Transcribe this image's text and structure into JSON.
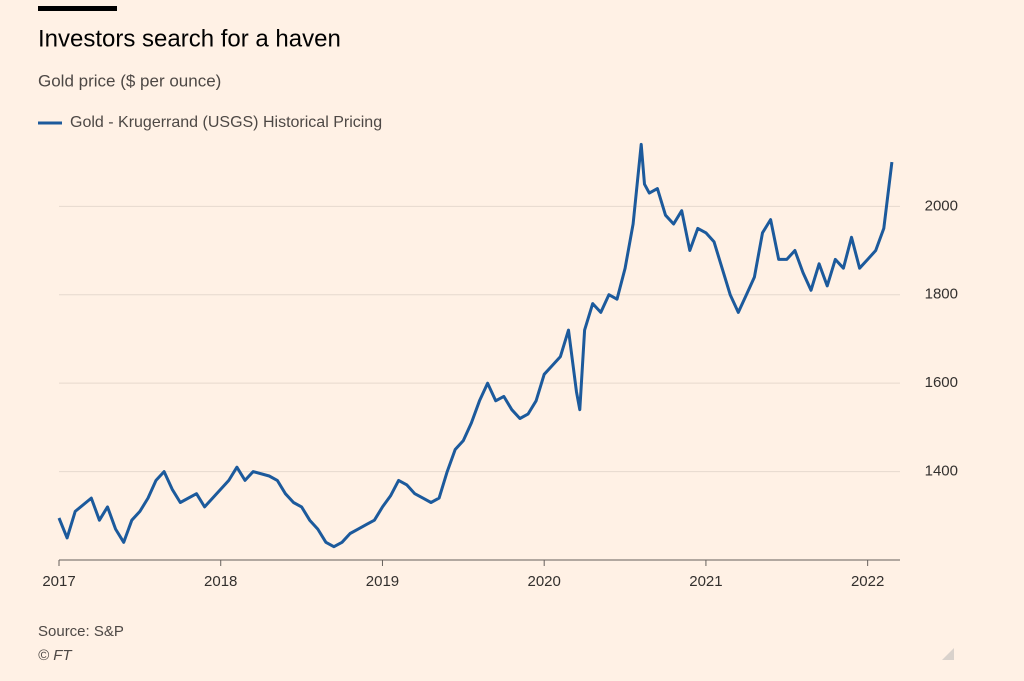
{
  "chart_data": {
    "type": "line",
    "title": "Investors search for a haven",
    "subtitle": "Gold price ($ per ounce)",
    "source": "Source: S&P",
    "credit": "© FT",
    "x": [
      2017.0,
      2017.05,
      2017.1,
      2017.2,
      2017.25,
      2017.3,
      2017.35,
      2017.4,
      2017.45,
      2017.5,
      2017.55,
      2017.6,
      2017.65,
      2017.7,
      2017.75,
      2017.85,
      2017.9,
      2017.95,
      2018.05,
      2018.1,
      2018.15,
      2018.2,
      2018.3,
      2018.35,
      2018.4,
      2018.45,
      2018.5,
      2018.55,
      2018.6,
      2018.65,
      2018.7,
      2018.75,
      2018.8,
      2018.85,
      2018.9,
      2018.95,
      2019.0,
      2019.05,
      2019.1,
      2019.15,
      2019.2,
      2019.25,
      2019.3,
      2019.35,
      2019.4,
      2019.45,
      2019.5,
      2019.55,
      2019.6,
      2019.65,
      2019.7,
      2019.75,
      2019.8,
      2019.85,
      2019.9,
      2019.95,
      2020.0,
      2020.05,
      2020.1,
      2020.15,
      2020.2,
      2020.22,
      2020.25,
      2020.3,
      2020.35,
      2020.4,
      2020.45,
      2020.5,
      2020.55,
      2020.6,
      2020.62,
      2020.65,
      2020.7,
      2020.75,
      2020.8,
      2020.85,
      2020.9,
      2020.95,
      2021.0,
      2021.05,
      2021.1,
      2021.15,
      2021.2,
      2021.25,
      2021.3,
      2021.35,
      2021.4,
      2021.45,
      2021.5,
      2021.55,
      2021.6,
      2021.65,
      2021.7,
      2021.75,
      2021.8,
      2021.85,
      2021.9,
      2021.95,
      2022.0,
      2022.05,
      2022.1,
      2022.15
    ],
    "series": [
      {
        "name": "Gold - Krugerrand (USGS) Historical Pricing",
        "color": "#1c5a9c",
        "values": [
          1295,
          1250,
          1310,
          1340,
          1290,
          1320,
          1270,
          1240,
          1290,
          1310,
          1340,
          1380,
          1400,
          1360,
          1330,
          1350,
          1320,
          1340,
          1380,
          1410,
          1380,
          1400,
          1390,
          1380,
          1350,
          1330,
          1320,
          1290,
          1270,
          1240,
          1230,
          1240,
          1260,
          1270,
          1280,
          1290,
          1320,
          1345,
          1380,
          1370,
          1350,
          1340,
          1330,
          1340,
          1400,
          1450,
          1470,
          1510,
          1560,
          1600,
          1560,
          1570,
          1540,
          1520,
          1530,
          1560,
          1620,
          1640,
          1660,
          1720,
          1580,
          1540,
          1720,
          1780,
          1760,
          1800,
          1790,
          1860,
          1960,
          2140,
          2050,
          2030,
          2040,
          1980,
          1960,
          1990,
          1900,
          1950,
          1940,
          1920,
          1860,
          1800,
          1760,
          1800,
          1840,
          1940,
          1970,
          1880,
          1880,
          1900,
          1850,
          1810,
          1870,
          1820,
          1880,
          1860,
          1930,
          1860,
          1880,
          1900,
          1950,
          2100
        ]
      }
    ],
    "xlim": [
      2017,
      2022.2
    ],
    "xticks": [
      2017,
      2018,
      2019,
      2020,
      2021,
      2022
    ],
    "ylim": [
      1200,
      2150
    ],
    "yticks": [
      1400,
      1600,
      1800,
      2000
    ],
    "grid": true
  }
}
